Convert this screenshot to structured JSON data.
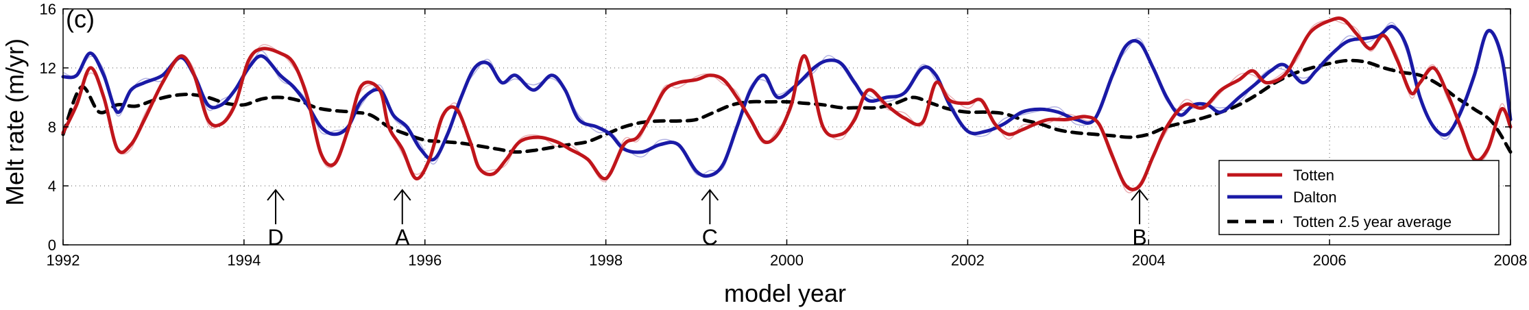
{
  "chart_data": {
    "type": "line",
    "panel_label": "(c)",
    "xlabel": "model year",
    "ylabel": "Melt rate (m/yr)",
    "xlim": [
      1992,
      2008
    ],
    "ylim": [
      0,
      16
    ],
    "x_ticks": [
      1992,
      1994,
      1996,
      1998,
      2000,
      2002,
      2004,
      2006,
      2008
    ],
    "y_ticks": [
      0,
      4,
      8,
      12,
      16
    ],
    "grid": true,
    "legend_position": "bottom-right",
    "colors": {
      "totten": "#c0151b",
      "dalton": "#1a1aa6",
      "average": "#000000",
      "totten_raw": "#e8a8ae",
      "dalton_raw": "#a9a9df"
    },
    "series": [
      {
        "name": "Totten",
        "style": "solid",
        "x": [
          1992.0,
          1992.15,
          1992.3,
          1992.45,
          1992.6,
          1992.75,
          1992.9,
          1993.1,
          1993.3,
          1993.45,
          1993.6,
          1993.75,
          1993.9,
          1994.05,
          1994.2,
          1994.4,
          1994.55,
          1994.7,
          1994.85,
          1995.0,
          1995.15,
          1995.3,
          1995.5,
          1995.6,
          1995.75,
          1995.9,
          1996.05,
          1996.2,
          1996.35,
          1996.5,
          1996.6,
          1996.75,
          1996.9,
          1997.05,
          1997.25,
          1997.45,
          1997.6,
          1997.8,
          1998.0,
          1998.2,
          1998.35,
          1998.5,
          1998.65,
          1998.8,
          1999.0,
          1999.15,
          1999.3,
          1999.45,
          1999.6,
          1999.75,
          1999.9,
          2000.05,
          2000.2,
          2000.4,
          2000.6,
          2000.75,
          2000.9,
          2001.1,
          2001.3,
          2001.5,
          2001.65,
          2001.8,
          2002.0,
          2002.15,
          2002.3,
          2002.45,
          2002.6,
          2002.75,
          2002.9,
          2003.1,
          2003.3,
          2003.45,
          2003.6,
          2003.75,
          2003.9,
          2004.05,
          2004.2,
          2004.4,
          2004.6,
          2004.8,
          2005.0,
          2005.15,
          2005.3,
          2005.5,
          2005.65,
          2005.8,
          2006.0,
          2006.15,
          2006.3,
          2006.45,
          2006.6,
          2006.75,
          2006.9,
          2007.0,
          2007.15,
          2007.3,
          2007.45,
          2007.6,
          2007.75,
          2007.9,
          2008.0
        ],
        "values": [
          7.6,
          9.5,
          12.0,
          10.0,
          6.5,
          6.8,
          8.5,
          11.0,
          12.8,
          11.5,
          8.5,
          8.2,
          9.5,
          12.5,
          13.3,
          13.0,
          12.3,
          10.0,
          6.2,
          5.5,
          7.8,
          10.8,
          10.5,
          8.0,
          6.5,
          4.5,
          5.8,
          8.8,
          9.2,
          7.0,
          5.2,
          4.8,
          5.8,
          7.0,
          7.3,
          7.0,
          6.5,
          5.8,
          4.5,
          6.8,
          7.3,
          8.8,
          10.5,
          11.0,
          11.2,
          11.5,
          11.2,
          10.0,
          8.5,
          7.0,
          7.5,
          9.5,
          12.8,
          8.0,
          7.5,
          8.5,
          10.5,
          9.5,
          8.6,
          8.3,
          11.0,
          9.8,
          9.6,
          9.8,
          8.2,
          7.5,
          7.8,
          8.2,
          8.5,
          8.5,
          8.7,
          8.2,
          6.0,
          4.0,
          4.0,
          6.0,
          8.0,
          9.5,
          9.3,
          10.5,
          11.2,
          11.8,
          11.0,
          11.5,
          13.0,
          14.5,
          15.2,
          15.3,
          14.3,
          13.3,
          14.2,
          12.5,
          10.3,
          11.0,
          12.0,
          10.3,
          8.0,
          5.8,
          6.5,
          9.2,
          8.0
        ]
      },
      {
        "name": "Dalton",
        "style": "solid",
        "x": [
          1992.0,
          1992.15,
          1992.3,
          1992.45,
          1992.6,
          1992.75,
          1992.9,
          1993.1,
          1993.3,
          1993.45,
          1993.6,
          1993.75,
          1993.9,
          1994.05,
          1994.2,
          1994.4,
          1994.55,
          1994.7,
          1994.85,
          1995.0,
          1995.15,
          1995.3,
          1995.5,
          1995.65,
          1995.8,
          1995.95,
          1996.1,
          1996.25,
          1996.4,
          1996.55,
          1996.7,
          1996.85,
          1997.0,
          1997.2,
          1997.4,
          1997.55,
          1997.7,
          1997.9,
          1998.05,
          1998.2,
          1998.4,
          1998.6,
          1998.8,
          1999.0,
          1999.15,
          1999.3,
          1999.45,
          1999.6,
          1999.75,
          1999.9,
          2000.1,
          2000.3,
          2000.45,
          2000.6,
          2000.75,
          2000.9,
          2001.1,
          2001.3,
          2001.5,
          2001.65,
          2001.8,
          2002.0,
          2002.2,
          2002.4,
          2002.6,
          2002.8,
          2003.0,
          2003.2,
          2003.4,
          2003.6,
          2003.75,
          2003.9,
          2004.05,
          2004.2,
          2004.35,
          2004.5,
          2004.65,
          2004.8,
          2005.0,
          2005.2,
          2005.35,
          2005.5,
          2005.7,
          2005.85,
          2006.0,
          2006.2,
          2006.4,
          2006.55,
          2006.7,
          2006.85,
          2007.0,
          2007.15,
          2007.3,
          2007.45,
          2007.6,
          2007.75,
          2007.9,
          2008.0
        ],
        "values": [
          11.4,
          11.5,
          13.0,
          11.5,
          9.0,
          10.5,
          11.0,
          11.5,
          12.7,
          11.5,
          9.5,
          9.5,
          10.5,
          12.0,
          12.8,
          11.5,
          10.7,
          9.5,
          8.0,
          7.5,
          8.0,
          9.8,
          10.5,
          8.8,
          8.0,
          6.5,
          5.8,
          7.5,
          10.0,
          12.0,
          12.3,
          11.0,
          11.5,
          10.5,
          11.5,
          10.5,
          8.5,
          8.0,
          7.5,
          6.5,
          6.3,
          6.8,
          6.8,
          5.0,
          4.7,
          5.5,
          8.0,
          10.5,
          11.5,
          10.0,
          10.8,
          12.0,
          12.5,
          12.3,
          11.0,
          9.8,
          10.0,
          10.3,
          12.0,
          11.5,
          9.5,
          7.7,
          7.7,
          8.2,
          9.0,
          9.2,
          9.0,
          8.5,
          8.5,
          11.5,
          13.5,
          13.7,
          12.0,
          10.0,
          8.8,
          9.5,
          9.5,
          9.0,
          10.0,
          11.0,
          11.8,
          12.2,
          11.0,
          11.8,
          12.8,
          13.8,
          14.0,
          14.2,
          14.8,
          13.5,
          10.0,
          8.0,
          7.5,
          9.0,
          11.5,
          14.5,
          12.8,
          8.5
        ]
      },
      {
        "name": "Totten 2.5 year average",
        "style": "dashed",
        "x": [
          1992.0,
          1992.2,
          1992.4,
          1992.6,
          1992.8,
          1993.0,
          1993.2,
          1993.4,
          1993.6,
          1993.8,
          1994.0,
          1994.2,
          1994.4,
          1994.6,
          1994.8,
          1995.0,
          1995.2,
          1995.4,
          1995.6,
          1995.8,
          1996.0,
          1996.2,
          1996.4,
          1996.6,
          1996.8,
          1997.0,
          1997.2,
          1997.4,
          1997.6,
          1997.8,
          1998.0,
          1998.2,
          1998.4,
          1998.6,
          1998.8,
          1999.0,
          1999.2,
          1999.4,
          1999.6,
          1999.8,
          2000.0,
          2000.2,
          2000.4,
          2000.6,
          2000.8,
          2001.0,
          2001.2,
          2001.4,
          2001.6,
          2001.8,
          2002.0,
          2002.2,
          2002.4,
          2002.6,
          2002.8,
          2003.0,
          2003.2,
          2003.4,
          2003.6,
          2003.8,
          2004.0,
          2004.2,
          2004.4,
          2004.6,
          2004.8,
          2005.0,
          2005.2,
          2005.4,
          2005.6,
          2005.8,
          2006.0,
          2006.2,
          2006.4,
          2006.6,
          2006.8,
          2007.0,
          2007.2,
          2007.4,
          2007.6,
          2007.8,
          2008.0
        ],
        "values": [
          7.5,
          10.7,
          9.0,
          9.5,
          9.4,
          9.8,
          10.1,
          10.2,
          10.0,
          9.6,
          9.5,
          9.9,
          10.0,
          9.8,
          9.3,
          9.1,
          9.0,
          8.8,
          8.0,
          7.5,
          7.1,
          7.0,
          6.9,
          6.7,
          6.5,
          6.3,
          6.4,
          6.6,
          6.8,
          7.0,
          7.5,
          8.0,
          8.3,
          8.4,
          8.4,
          8.5,
          9.0,
          9.5,
          9.7,
          9.7,
          9.7,
          9.6,
          9.5,
          9.3,
          9.3,
          9.3,
          9.6,
          10.0,
          9.6,
          9.2,
          9.0,
          9.0,
          8.9,
          8.5,
          8.2,
          7.8,
          7.6,
          7.5,
          7.4,
          7.3,
          7.5,
          8.0,
          8.3,
          8.6,
          9.0,
          9.5,
          10.2,
          11.0,
          11.6,
          12.0,
          12.3,
          12.5,
          12.4,
          12.0,
          11.7,
          11.5,
          10.9,
          10.0,
          9.2,
          8.3,
          6.3
        ]
      }
    ],
    "annotations": [
      {
        "label": "D",
        "x": 1994.35
      },
      {
        "label": "A",
        "x": 1995.75
      },
      {
        "label": "C",
        "x": 1999.15
      },
      {
        "label": "B",
        "x": 2003.9
      }
    ]
  }
}
